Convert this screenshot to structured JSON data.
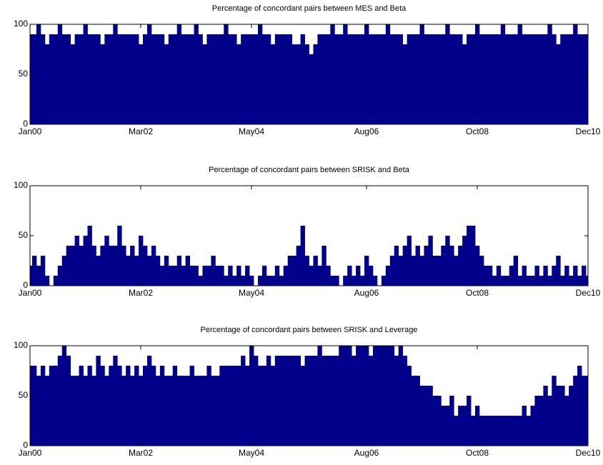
{
  "chart_data": [
    {
      "type": "bar",
      "title": "Percentage of concordant pairs between MES and Beta",
      "color": "#00008b",
      "ylim": [
        0,
        100
      ],
      "yticks": [
        0,
        50,
        100
      ],
      "categories": [
        "Jan00",
        null,
        null,
        null,
        null,
        null,
        null,
        null,
        null,
        null,
        null,
        null,
        null,
        null,
        null,
        null,
        null,
        null,
        null,
        null,
        null,
        null,
        null,
        null,
        null,
        null,
        "Mar02",
        null,
        null,
        null,
        null,
        null,
        null,
        null,
        null,
        null,
        null,
        null,
        null,
        null,
        null,
        null,
        null,
        null,
        null,
        null,
        null,
        null,
        null,
        null,
        null,
        null,
        "May04",
        null,
        null,
        null,
        null,
        null,
        null,
        null,
        null,
        null,
        null,
        null,
        null,
        null,
        null,
        null,
        null,
        null,
        null,
        null,
        null,
        null,
        null,
        null,
        null,
        null,
        null,
        "Aug06",
        null,
        null,
        null,
        null,
        null,
        null,
        null,
        null,
        null,
        null,
        null,
        null,
        null,
        null,
        null,
        null,
        null,
        null,
        null,
        null,
        null,
        null,
        null,
        null,
        null,
        "Oct08",
        null,
        null,
        null,
        null,
        null,
        null,
        null,
        null,
        null,
        null,
        null,
        null,
        null,
        null,
        null,
        null,
        null,
        null,
        null,
        null,
        null,
        null,
        null,
        null,
        null,
        "Dec10"
      ],
      "values": [
        90,
        90,
        100,
        90,
        80,
        90,
        90,
        100,
        90,
        90,
        80,
        90,
        90,
        100,
        90,
        90,
        90,
        80,
        90,
        90,
        100,
        90,
        90,
        90,
        90,
        90,
        80,
        90,
        100,
        90,
        90,
        90,
        80,
        90,
        90,
        100,
        90,
        90,
        90,
        100,
        90,
        80,
        90,
        90,
        90,
        90,
        100,
        90,
        90,
        80,
        90,
        90,
        90,
        90,
        100,
        90,
        90,
        80,
        90,
        90,
        90,
        90,
        80,
        80,
        90,
        80,
        70,
        80,
        90,
        90,
        90,
        100,
        90,
        90,
        100,
        90,
        90,
        90,
        90,
        100,
        90,
        90,
        90,
        90,
        100,
        90,
        90,
        90,
        80,
        90,
        90,
        90,
        100,
        90,
        90,
        90,
        90,
        90,
        100,
        90,
        90,
        90,
        80,
        90,
        90,
        100,
        90,
        90,
        90,
        90,
        90,
        100,
        90,
        90,
        90,
        100,
        90,
        90,
        90,
        90,
        90,
        90,
        100,
        90,
        80,
        90,
        90,
        90,
        100,
        90,
        90,
        90
      ]
    },
    {
      "type": "bar",
      "title": "Percentage of concordant pairs between SRISK and Beta",
      "color": "#00008b",
      "ylim": [
        0,
        100
      ],
      "yticks": [
        0,
        50,
        100
      ],
      "categories": [
        "Jan00",
        null,
        null,
        null,
        null,
        null,
        null,
        null,
        null,
        null,
        null,
        null,
        null,
        null,
        null,
        null,
        null,
        null,
        null,
        null,
        null,
        null,
        null,
        null,
        null,
        null,
        "Mar02",
        null,
        null,
        null,
        null,
        null,
        null,
        null,
        null,
        null,
        null,
        null,
        null,
        null,
        null,
        null,
        null,
        null,
        null,
        null,
        null,
        null,
        null,
        null,
        null,
        null,
        "May04",
        null,
        null,
        null,
        null,
        null,
        null,
        null,
        null,
        null,
        null,
        null,
        null,
        null,
        null,
        null,
        null,
        null,
        null,
        null,
        null,
        null,
        null,
        null,
        null,
        null,
        null,
        "Aug06",
        null,
        null,
        null,
        null,
        null,
        null,
        null,
        null,
        null,
        null,
        null,
        null,
        null,
        null,
        null,
        null,
        null,
        null,
        null,
        null,
        null,
        null,
        null,
        null,
        null,
        "Oct08",
        null,
        null,
        null,
        null,
        null,
        null,
        null,
        null,
        null,
        null,
        null,
        null,
        null,
        null,
        null,
        null,
        null,
        null,
        null,
        null,
        null,
        null,
        null,
        null,
        null,
        "Dec10"
      ],
      "values": [
        20,
        30,
        20,
        30,
        10,
        0,
        10,
        20,
        30,
        40,
        40,
        50,
        40,
        50,
        60,
        40,
        30,
        40,
        50,
        40,
        40,
        60,
        40,
        30,
        40,
        30,
        50,
        40,
        30,
        40,
        30,
        20,
        30,
        20,
        20,
        30,
        20,
        30,
        20,
        20,
        10,
        20,
        20,
        30,
        20,
        20,
        10,
        20,
        10,
        20,
        10,
        20,
        10,
        0,
        10,
        20,
        10,
        10,
        20,
        10,
        20,
        30,
        30,
        40,
        60,
        30,
        20,
        30,
        20,
        40,
        20,
        10,
        10,
        0,
        10,
        20,
        10,
        20,
        10,
        30,
        20,
        10,
        0,
        10,
        20,
        30,
        40,
        30,
        40,
        50,
        30,
        40,
        30,
        40,
        50,
        30,
        30,
        40,
        50,
        40,
        30,
        40,
        50,
        60,
        60,
        40,
        30,
        20,
        20,
        10,
        20,
        10,
        10,
        20,
        30,
        10,
        20,
        10,
        10,
        20,
        10,
        20,
        10,
        20,
        30,
        10,
        20,
        10,
        20,
        10,
        20,
        10
      ]
    },
    {
      "type": "bar",
      "title": "Percentage of concordant pairs between SRISK and Leverage",
      "color": "#00008b",
      "ylim": [
        0,
        100
      ],
      "yticks": [
        0,
        50,
        100
      ],
      "categories": [
        "Jan00",
        null,
        null,
        null,
        null,
        null,
        null,
        null,
        null,
        null,
        null,
        null,
        null,
        null,
        null,
        null,
        null,
        null,
        null,
        null,
        null,
        null,
        null,
        null,
        null,
        null,
        "Mar02",
        null,
        null,
        null,
        null,
        null,
        null,
        null,
        null,
        null,
        null,
        null,
        null,
        null,
        null,
        null,
        null,
        null,
        null,
        null,
        null,
        null,
        null,
        null,
        null,
        null,
        "May04",
        null,
        null,
        null,
        null,
        null,
        null,
        null,
        null,
        null,
        null,
        null,
        null,
        null,
        null,
        null,
        null,
        null,
        null,
        null,
        null,
        null,
        null,
        null,
        null,
        null,
        null,
        "Aug06",
        null,
        null,
        null,
        null,
        null,
        null,
        null,
        null,
        null,
        null,
        null,
        null,
        null,
        null,
        null,
        null,
        null,
        null,
        null,
        null,
        null,
        null,
        null,
        null,
        null,
        "Oct08",
        null,
        null,
        null,
        null,
        null,
        null,
        null,
        null,
        null,
        null,
        null,
        null,
        null,
        null,
        null,
        null,
        null,
        null,
        null,
        null,
        null,
        null,
        null,
        null,
        null,
        "Dec10"
      ],
      "values": [
        80,
        80,
        70,
        80,
        70,
        80,
        80,
        90,
        100,
        90,
        70,
        70,
        80,
        70,
        80,
        70,
        90,
        80,
        70,
        80,
        90,
        80,
        70,
        80,
        70,
        80,
        70,
        80,
        90,
        80,
        70,
        80,
        70,
        70,
        80,
        70,
        70,
        70,
        80,
        70,
        70,
        70,
        80,
        70,
        70,
        80,
        80,
        80,
        80,
        80,
        90,
        80,
        100,
        90,
        80,
        80,
        90,
        80,
        90,
        90,
        90,
        90,
        90,
        90,
        80,
        90,
        90,
        90,
        100,
        90,
        90,
        90,
        90,
        100,
        100,
        100,
        90,
        100,
        100,
        100,
        90,
        100,
        100,
        100,
        100,
        100,
        90,
        100,
        90,
        80,
        70,
        70,
        60,
        60,
        60,
        50,
        50,
        40,
        40,
        50,
        30,
        40,
        40,
        50,
        30,
        40,
        30,
        30,
        30,
        30,
        30,
        30,
        30,
        30,
        30,
        30,
        40,
        30,
        40,
        50,
        50,
        60,
        50,
        70,
        60,
        60,
        50,
        60,
        70,
        80,
        70,
        70
      ]
    }
  ]
}
